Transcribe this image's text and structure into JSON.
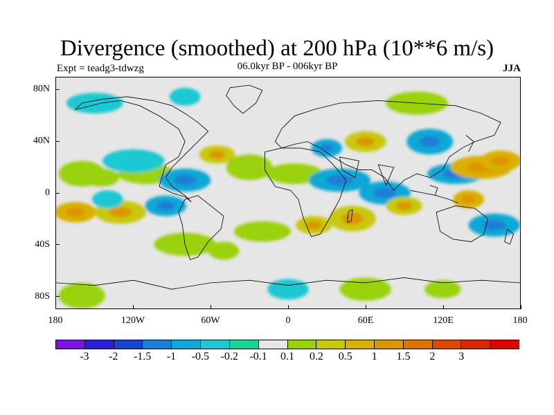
{
  "title": "Divergence (smoothed) at 200 hPa (10**6 m/s)",
  "experiment": "Expt = teadg3-tdwzg",
  "subtitle": "06.0kyr BP - 006kyr BP",
  "season": "JJA",
  "map": {
    "projection": "cylindrical equidistant",
    "lon_range": [
      -180,
      180
    ],
    "lat_range": [
      -90,
      90
    ],
    "background_color": "#e6e6e6",
    "x_tick_labels": [
      "180",
      "120W",
      "60W",
      "0",
      "60E",
      "120E",
      "180"
    ],
    "x_tick_values": [
      -180,
      -120,
      -60,
      0,
      60,
      120,
      180
    ],
    "y_tick_labels": [
      "80N",
      "40N",
      "0",
      "40S",
      "80S"
    ],
    "y_tick_values": [
      80,
      40,
      0,
      -40,
      -80
    ]
  },
  "colorbar": {
    "colors": [
      "#7b14e3",
      "#2d1fd8",
      "#1446d2",
      "#1a7fd6",
      "#10a8d6",
      "#1fc8d2",
      "#18d69a",
      "#e6e6e6",
      "#9ad20c",
      "#c8c808",
      "#d9b000",
      "#db9500",
      "#de7300",
      "#dc4a00",
      "#d82800",
      "#e10000"
    ],
    "labels": [
      "-3",
      "-2",
      "-1.5",
      "-1",
      "-0.5",
      "-0.2",
      "-0.1",
      "0.1",
      "0.2",
      "0.5",
      "1",
      "1.5",
      "2",
      "3"
    ]
  },
  "chart_data": {
    "type": "heatmap",
    "variable": "200 hPa divergence difference (smoothed)",
    "units": "10**6 m/s",
    "features": [
      {
        "lon": -165,
        "lat": -15,
        "level": "1"
      },
      {
        "lon": -130,
        "lat": -15,
        "level": "0.5"
      },
      {
        "lon": -145,
        "lat": 12,
        "level": "0.2"
      },
      {
        "lon": -160,
        "lat": 15,
        "level": "0.2"
      },
      {
        "lon": -110,
        "lat": 15,
        "level": "0.2"
      },
      {
        "lon": -140,
        "lat": -5,
        "level": "-0.2"
      },
      {
        "lon": -120,
        "lat": 25,
        "level": "-0.2"
      },
      {
        "lon": -95,
        "lat": -10,
        "level": "-0.5"
      },
      {
        "lon": -80,
        "lat": 10,
        "level": "-0.5"
      },
      {
        "lon": -55,
        "lat": 30,
        "level": "0.5"
      },
      {
        "lon": -30,
        "lat": 20,
        "level": "0.2"
      },
      {
        "lon": 5,
        "lat": 15,
        "level": "0.2"
      },
      {
        "lon": 30,
        "lat": 35,
        "level": "-0.5"
      },
      {
        "lon": 40,
        "lat": 10,
        "level": "-0.5"
      },
      {
        "lon": 60,
        "lat": 40,
        "level": "0.5"
      },
      {
        "lon": 75,
        "lat": 0,
        "level": "-0.5"
      },
      {
        "lon": 90,
        "lat": -10,
        "level": "0.5"
      },
      {
        "lon": 110,
        "lat": 40,
        "level": "-0.5"
      },
      {
        "lon": 130,
        "lat": 15,
        "level": "-0.5"
      },
      {
        "lon": 140,
        "lat": -5,
        "level": "1"
      },
      {
        "lon": 150,
        "lat": 20,
        "level": "1"
      },
      {
        "lon": 165,
        "lat": 25,
        "level": "1"
      },
      {
        "lon": 160,
        "lat": -25,
        "level": "-0.5"
      },
      {
        "lon": 20,
        "lat": -25,
        "level": "0.5"
      },
      {
        "lon": 50,
        "lat": -20,
        "level": "0.5"
      },
      {
        "lon": -20,
        "lat": -30,
        "level": "0.2"
      },
      {
        "lon": -50,
        "lat": -45,
        "level": "0.2"
      },
      {
        "lon": -80,
        "lat": -40,
        "level": "0.2"
      },
      {
        "lon": 0,
        "lat": -75,
        "level": "-0.2"
      },
      {
        "lon": 60,
        "lat": -75,
        "level": "0.2"
      },
      {
        "lon": 120,
        "lat": -75,
        "level": "0.2"
      },
      {
        "lon": -160,
        "lat": -80,
        "level": "0.2"
      },
      {
        "lon": -150,
        "lat": 70,
        "level": "-0.2"
      },
      {
        "lon": -80,
        "lat": 75,
        "level": "-0.2"
      },
      {
        "lon": 100,
        "lat": 70,
        "level": "0.2"
      }
    ]
  }
}
